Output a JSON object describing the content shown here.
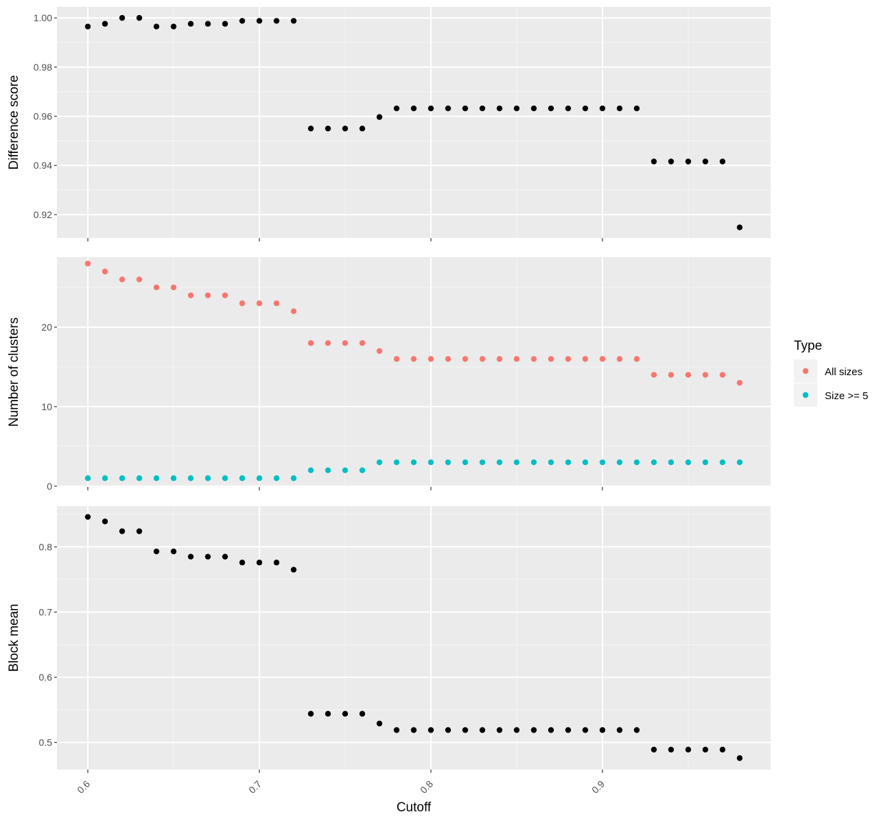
{
  "chart_data": [
    {
      "type": "scatter",
      "ylabel": "Difference score",
      "xlabel": "",
      "xlim": [
        0.582,
        0.998
      ],
      "ylim": [
        0.9105,
        1.0045
      ],
      "yticks": [
        0.92,
        0.94,
        0.96,
        0.98,
        1.0
      ],
      "ytick_labels": [
        "0.92",
        "0.94",
        "0.96",
        "0.98",
        "1.00"
      ],
      "xticks": [
        0.6,
        0.7,
        0.8,
        0.9
      ],
      "grid": true,
      "point_color": "#000000",
      "series": [
        {
          "x": [
            0.6,
            0.61,
            0.62,
            0.63,
            0.64,
            0.65,
            0.66,
            0.67,
            0.68,
            0.69,
            0.7,
            0.71,
            0.72,
            0.73,
            0.74,
            0.75,
            0.76,
            0.77,
            0.78,
            0.79,
            0.8,
            0.81,
            0.82,
            0.83,
            0.84,
            0.85,
            0.86,
            0.87,
            0.88,
            0.89,
            0.9,
            0.91,
            0.92,
            0.93,
            0.94,
            0.95,
            0.96,
            0.97,
            0.98
          ],
          "y": [
            0.9965,
            0.9976,
            1.0,
            1.0,
            0.9965,
            0.9965,
            0.9976,
            0.9976,
            0.9976,
            0.9988,
            0.9988,
            0.9988,
            0.9988,
            0.955,
            0.955,
            0.955,
            0.955,
            0.9597,
            0.9632,
            0.9632,
            0.9632,
            0.9632,
            0.9632,
            0.9632,
            0.9632,
            0.9632,
            0.9632,
            0.9632,
            0.9632,
            0.9632,
            0.9632,
            0.9632,
            0.9632,
            0.9416,
            0.9416,
            0.9416,
            0.9416,
            0.9416,
            0.9148
          ]
        }
      ]
    },
    {
      "type": "scatter",
      "ylabel": "Number of clusters",
      "xlabel": "",
      "xlim": [
        0.582,
        0.998
      ],
      "ylim": [
        -0.1,
        28.8
      ],
      "yticks": [
        0,
        10,
        20
      ],
      "ytick_labels": [
        "0",
        "10",
        "20"
      ],
      "xticks": [
        0.6,
        0.7,
        0.8,
        0.9
      ],
      "grid": true,
      "legend_placement": "right",
      "series": [
        {
          "name": "All sizes",
          "color": "#F8766D",
          "x": [
            0.6,
            0.61,
            0.62,
            0.63,
            0.64,
            0.65,
            0.66,
            0.67,
            0.68,
            0.69,
            0.7,
            0.71,
            0.72,
            0.73,
            0.74,
            0.75,
            0.76,
            0.77,
            0.78,
            0.79,
            0.8,
            0.81,
            0.82,
            0.83,
            0.84,
            0.85,
            0.86,
            0.87,
            0.88,
            0.89,
            0.9,
            0.91,
            0.92,
            0.93,
            0.94,
            0.95,
            0.96,
            0.97,
            0.98
          ],
          "y": [
            28,
            27,
            26,
            26,
            25,
            25,
            24,
            24,
            24,
            23,
            23,
            23,
            22,
            18,
            18,
            18,
            18,
            17,
            16,
            16,
            16,
            16,
            16,
            16,
            16,
            16,
            16,
            16,
            16,
            16,
            16,
            16,
            16,
            14,
            14,
            14,
            14,
            14,
            13
          ]
        },
        {
          "name": "Size >= 5",
          "color": "#00BFC4",
          "x": [
            0.6,
            0.61,
            0.62,
            0.63,
            0.64,
            0.65,
            0.66,
            0.67,
            0.68,
            0.69,
            0.7,
            0.71,
            0.72,
            0.73,
            0.74,
            0.75,
            0.76,
            0.77,
            0.78,
            0.79,
            0.8,
            0.81,
            0.82,
            0.83,
            0.84,
            0.85,
            0.86,
            0.87,
            0.88,
            0.89,
            0.9,
            0.91,
            0.92,
            0.93,
            0.94,
            0.95,
            0.96,
            0.97,
            0.98
          ],
          "y": [
            1,
            1,
            1,
            1,
            1,
            1,
            1,
            1,
            1,
            1,
            1,
            1,
            1,
            2,
            2,
            2,
            2,
            3,
            3,
            3,
            3,
            3,
            3,
            3,
            3,
            3,
            3,
            3,
            3,
            3,
            3,
            3,
            3,
            3,
            3,
            3,
            3,
            3,
            3
          ]
        }
      ]
    },
    {
      "type": "scatter",
      "ylabel": "Block mean",
      "xlabel": "Cutoff",
      "xlim": [
        0.582,
        0.998
      ],
      "ylim": [
        0.4585,
        0.8625
      ],
      "yticks": [
        0.5,
        0.6,
        0.7,
        0.8
      ],
      "ytick_labels": [
        "0.5",
        "0.6",
        "0.7",
        "0.8"
      ],
      "xticks": [
        0.6,
        0.7,
        0.8,
        0.9
      ],
      "xtick_labels": [
        "0.6",
        "0.7",
        "0.8",
        "0.9"
      ],
      "grid": true,
      "point_color": "#000000",
      "series": [
        {
          "x": [
            0.6,
            0.61,
            0.62,
            0.63,
            0.64,
            0.65,
            0.66,
            0.67,
            0.68,
            0.69,
            0.7,
            0.71,
            0.72,
            0.73,
            0.74,
            0.75,
            0.76,
            0.77,
            0.78,
            0.79,
            0.8,
            0.81,
            0.82,
            0.83,
            0.84,
            0.85,
            0.86,
            0.87,
            0.88,
            0.89,
            0.9,
            0.91,
            0.92,
            0.93,
            0.94,
            0.95,
            0.96,
            0.97,
            0.98
          ],
          "y": [
            0.846,
            0.839,
            0.824,
            0.824,
            0.793,
            0.793,
            0.785,
            0.785,
            0.785,
            0.776,
            0.776,
            0.776,
            0.765,
            0.544,
            0.544,
            0.544,
            0.544,
            0.529,
            0.519,
            0.519,
            0.519,
            0.519,
            0.519,
            0.519,
            0.519,
            0.519,
            0.519,
            0.519,
            0.519,
            0.519,
            0.519,
            0.519,
            0.519,
            0.489,
            0.489,
            0.489,
            0.489,
            0.489,
            0.476
          ]
        }
      ]
    }
  ],
  "legend": {
    "title": "Type",
    "entries": [
      {
        "label": "All sizes",
        "color": "#F8766D"
      },
      {
        "label": "Size >= 5",
        "color": "#00BFC4"
      }
    ]
  },
  "colors": {
    "panel_background": "#EBEBEB",
    "grid_major": "#FFFFFF",
    "grid_minor": "#F5F5F5",
    "tick": "#333333"
  }
}
